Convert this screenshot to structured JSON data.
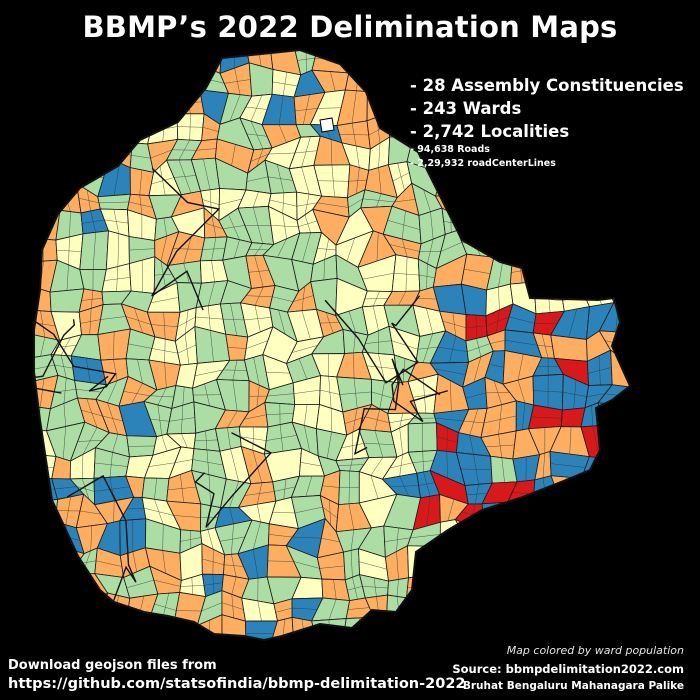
{
  "title": "BBMP’s 2022 Delimination Maps",
  "stats": {
    "assembly": "- 28 Assembly Constituencies",
    "wards": "- 243 Wards",
    "localities": "- 2,742 Localities",
    "roads": "- 94,638 Roads",
    "centerlines": "- 2,29,932 roadCenterLines"
  },
  "legend_note": "Map colored  by ward population",
  "source": "Source: bbmpdelimitation2022.com",
  "source_org": "Bruhat Bengaluru Mahanagara Palike",
  "download_text": "Download geojson files from",
  "download_link": "https://github.com/statsofindia/bbmp-delimitation-2022",
  "colors": {
    "background": "#000000",
    "population_classes": [
      "#ffffbf",
      "#abdda4",
      "#fdae61",
      "#2b83ba",
      "#d7191c"
    ],
    "boundary": "#1a1a1a"
  }
}
